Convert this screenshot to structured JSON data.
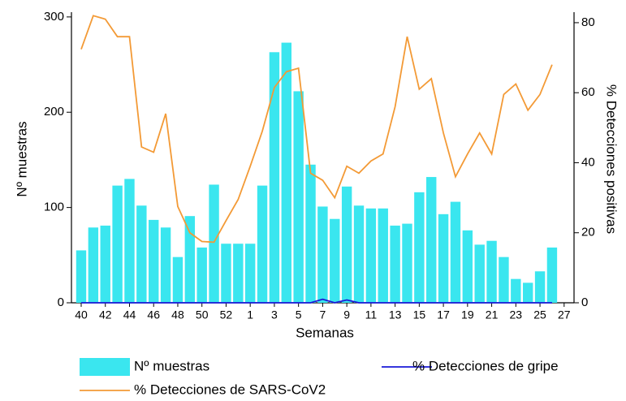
{
  "chart_data": {
    "type": "bar",
    "categories": [
      "40",
      null,
      "42",
      null,
      "44",
      null,
      "46",
      null,
      "48",
      null,
      "50",
      null,
      "52",
      null,
      "1",
      null,
      "3",
      null,
      "5",
      null,
      "7",
      null,
      "9",
      null,
      "11",
      null,
      "13",
      null,
      "15",
      null,
      "17",
      null,
      "19",
      null,
      "21",
      null,
      "23",
      null,
      "25",
      null,
      "27"
    ],
    "x_label": "Semanas",
    "y_label": "Nº muestras",
    "y2_label": "% Detecciones positivas",
    "ylim": [
      0,
      305
    ],
    "yticks": [
      0,
      100,
      200,
      300
    ],
    "y2lim": [
      0,
      83
    ],
    "y2ticks": [
      0,
      20,
      40,
      60,
      80
    ],
    "series": [
      {
        "name": "Nº muestras",
        "type": "bar",
        "color": "#3ae6ef",
        "values": [
          55,
          79,
          81,
          123,
          130,
          102,
          87,
          79,
          48,
          91,
          58,
          124,
          62,
          62,
          62,
          123,
          263,
          273,
          222,
          145,
          101,
          88,
          122,
          102,
          99,
          99,
          81,
          83,
          116,
          132,
          93,
          106,
          76,
          61,
          65,
          48,
          25,
          21,
          33,
          58,
          null
        ]
      },
      {
        "name": "% Detecciones de gripe",
        "type": "line",
        "axis": "y2",
        "color": "#1a1ad8",
        "values": [
          0,
          0,
          0,
          0,
          0,
          0,
          0,
          0,
          0,
          0,
          0,
          0,
          0,
          0,
          0,
          0,
          0,
          0,
          0,
          0,
          1,
          0,
          0.8,
          0,
          0,
          0,
          0,
          0,
          0,
          0,
          0,
          0,
          0,
          0,
          0,
          0,
          0,
          0,
          0,
          0,
          null
        ]
      },
      {
        "name": "% Detecciones de SARS-CoV2",
        "type": "line",
        "axis": "y2",
        "color": "#f39a36",
        "values": [
          72.4,
          82,
          81,
          76,
          76,
          44.5,
          43,
          54,
          27.5,
          20,
          17.5,
          17.3,
          23.5,
          29.5,
          39,
          49,
          61.5,
          66,
          67,
          37,
          35,
          30,
          39,
          37,
          40.5,
          42.5,
          56,
          76,
          61,
          64,
          48.5,
          36,
          42.5,
          48.5,
          42.5,
          59.5,
          62.5,
          55,
          59.5,
          68,
          null
        ]
      }
    ]
  }
}
